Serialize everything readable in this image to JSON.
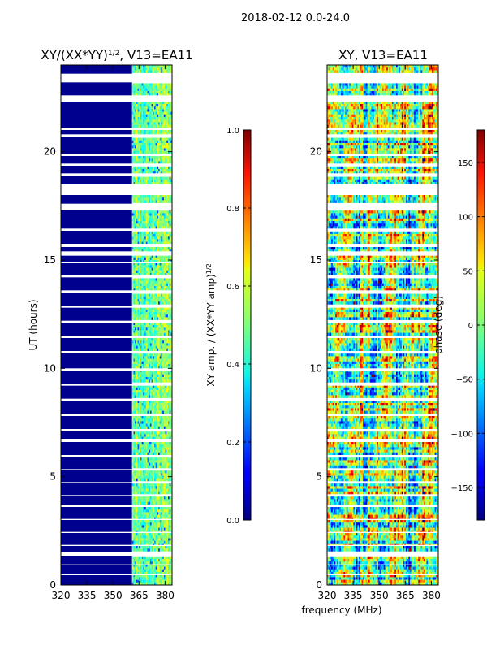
{
  "figure": {
    "suptitle": "2018-02-12 0.0-24.0",
    "shared_xlabel": "frequency (MHz)"
  },
  "chart_data": [
    {
      "type": "heatmap",
      "title": "XY/(XX*YY)^1/2, V13=EA11",
      "title_main": "XY/(XX*YY)",
      "title_sup": "1/2",
      "title_tail": ", V13=EA11",
      "xlabel": "",
      "ylabel": "UT (hours)",
      "xlim": [
        320,
        384
      ],
      "ylim": [
        0,
        24
      ],
      "xticks": [
        320,
        335,
        350,
        365,
        380
      ],
      "yticks": [
        0,
        5,
        10,
        15,
        20
      ],
      "colormap": "jet",
      "clim": [
        0.0,
        1.0
      ],
      "colorbar": {
        "ticks": [
          0.0,
          0.2,
          0.4,
          0.6,
          0.8,
          1.0
        ],
        "tick_labels": [
          "0.0",
          "0.2",
          "0.4",
          "0.6",
          "0.8",
          "1.0"
        ],
        "label": "XY amp. / (XX*YY amp)^1/2",
        "label_main": "XY amp. / (XX*YY amp)",
        "label_sup": "1/2"
      },
      "description": "Values near 0 (dark blue) below ~361 MHz; values 0.3-0.6 (cyan/green/yellow) between ~361-384 MHz",
      "low_region_upper_MHz": 361,
      "high_region_value_range": [
        0.3,
        0.65
      ]
    },
    {
      "type": "heatmap",
      "title": "XY, V13=EA11",
      "xlabel": "frequency (MHz)",
      "ylabel": "",
      "xlim": [
        320,
        384
      ],
      "ylim": [
        0,
        24
      ],
      "xticks": [
        320,
        335,
        350,
        365,
        380
      ],
      "yticks": [
        0,
        5,
        10,
        15,
        20
      ],
      "colormap": "jet",
      "clim": [
        -180,
        180
      ],
      "colorbar": {
        "ticks": [
          -150,
          -100,
          -50,
          0,
          50,
          100,
          150
        ],
        "tick_labels": [
          "−150",
          "−100",
          "−50",
          "0",
          "50",
          "100",
          "150"
        ],
        "label": "phase (deg)"
      },
      "description": "Phase values spanning the full -180 to 180 deg range; noisy per-channel vertical structure"
    }
  ],
  "data_gaps_UT_hours": [
    [
      23.2,
      23.6
    ],
    [
      22.3,
      22.6
    ],
    [
      21.0,
      21.1
    ],
    [
      20.7,
      20.8
    ],
    [
      19.8,
      19.9
    ],
    [
      19.35,
      19.45
    ],
    [
      18.9,
      19.0
    ],
    [
      18.0,
      18.5
    ],
    [
      17.3,
      17.6
    ],
    [
      16.35,
      16.45
    ],
    [
      15.6,
      15.75
    ],
    [
      15.2,
      15.4
    ],
    [
      14.85,
      14.9
    ],
    [
      14.2,
      14.3
    ],
    [
      13.5,
      13.6
    ],
    [
      12.8,
      12.9
    ],
    [
      12.1,
      12.2
    ],
    [
      11.4,
      11.5
    ],
    [
      10.7,
      10.8
    ],
    [
      9.9,
      10.0
    ],
    [
      9.2,
      9.3
    ],
    [
      8.5,
      8.6
    ],
    [
      7.8,
      7.9
    ],
    [
      7.1,
      7.2
    ],
    [
      6.6,
      6.75
    ],
    [
      5.9,
      6.0
    ],
    [
      5.3,
      5.35
    ],
    [
      4.7,
      4.75
    ],
    [
      4.1,
      4.15
    ],
    [
      3.6,
      3.7
    ],
    [
      3.0,
      3.05
    ],
    [
      2.4,
      2.45
    ],
    [
      1.8,
      1.85
    ],
    [
      1.35,
      1.5
    ],
    [
      0.9,
      0.95
    ],
    [
      0.45,
      0.5
    ]
  ],
  "colors": {
    "background": "#ffffff",
    "axis": "#000000",
    "gap": "#ffffff"
  }
}
